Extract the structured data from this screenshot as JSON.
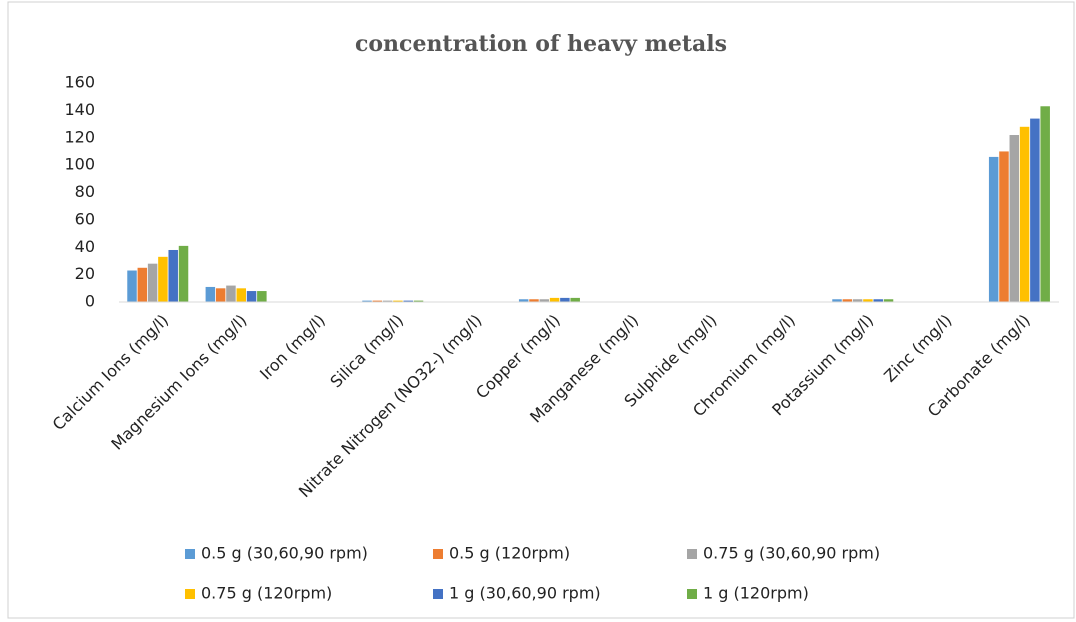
{
  "chart_data": {
    "type": "bar",
    "title": "concentration of heavy metals",
    "categories": [
      "Calcium Ions (mg/l)",
      "Magnesium Ions (mg/l)",
      "Iron (mg/l)",
      "Silica (mg/l)",
      "Nitrate Nitrogen (NO32-) (mg/l)",
      "Copper (mg/l)",
      "Manganese (mg/l)",
      "Sulphide (mg/l)",
      "Chromium (mg/l)",
      "Potassium (mg/l)",
      "Zinc (mg/l)",
      "Carbonate (mg/l)"
    ],
    "series": [
      {
        "name": "0.5 g (30,60,90 rpm)",
        "color": "#5b9bd5",
        "values": [
          23,
          11,
          0,
          1,
          0,
          2,
          0,
          0,
          0,
          2,
          0,
          106
        ]
      },
      {
        "name": "0.5 g (120rpm)",
        "color": "#ed7d31",
        "values": [
          25,
          10,
          0,
          1,
          0,
          2,
          0,
          0,
          0,
          2,
          0,
          110
        ]
      },
      {
        "name": "0.75 g (30,60,90 rpm)",
        "color": "#a5a5a5",
        "values": [
          28,
          12,
          0,
          1,
          0,
          2,
          0,
          0,
          0,
          2,
          0,
          122
        ]
      },
      {
        "name": "0.75 g (120rpm)",
        "color": "#ffc000",
        "values": [
          33,
          10,
          0,
          1,
          0,
          3,
          0,
          0,
          0,
          2,
          0,
          128
        ]
      },
      {
        "name": "1 g (30,60,90 rpm)",
        "color": "#4472c4",
        "values": [
          38,
          8,
          0,
          1,
          0,
          3,
          0,
          0,
          0,
          2,
          0,
          134
        ]
      },
      {
        "name": "1 g (120rpm)",
        "color": "#70ad47",
        "values": [
          41,
          8,
          0,
          1,
          0,
          3,
          0,
          0,
          0,
          2,
          0,
          143
        ]
      }
    ],
    "ylim": [
      0,
      160
    ],
    "yticks": [
      0,
      20,
      40,
      60,
      80,
      100,
      120,
      140,
      160
    ],
    "grid": false,
    "legend": "bottom"
  }
}
